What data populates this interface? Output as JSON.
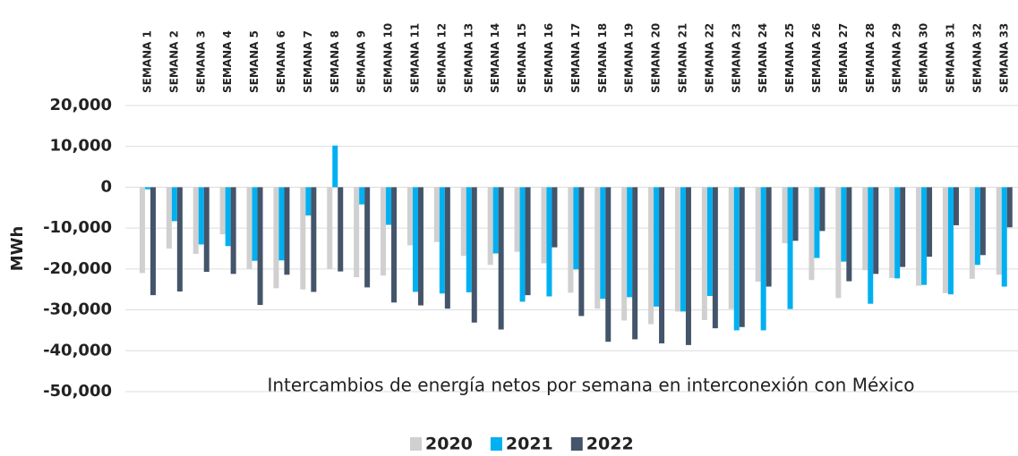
{
  "chart_data": {
    "type": "bar",
    "title": "Intercambios de energía netos por semana en interconexión con México",
    "y_label": "MWh",
    "categories": [
      "SEMANA 1",
      "SEMANA 2",
      "SEMANA 3",
      "SEMANA 4",
      "SEMANA 5",
      "SEMANA 6",
      "SEMANA 7",
      "SEMANA 8",
      "SEMANA 9",
      "SEMANA 10",
      "SEMANA 11",
      "SEMANA 12",
      "SEMANA 13",
      "SEMANA 14",
      "SEMANA 15",
      "SEMANA 16",
      "SEMANA 17",
      "SEMANA 18",
      "SEMANA 19",
      "SEMANA 20",
      "SEMANA 21",
      "SEMANA 22",
      "SEMANA 23",
      "SEMANA 24",
      "SEMANA 25",
      "SEMANA 26",
      "SEMANA 27",
      "SEMANA 28",
      "SEMANA 29",
      "SEMANA 30",
      "SEMANA 31",
      "SEMANA 32",
      "SEMANA 33"
    ],
    "series": [
      {
        "name": "2020",
        "color": "#d0d0d0",
        "values": [
          -21000,
          -15000,
          -16300,
          -11500,
          -20000,
          -24700,
          -25000,
          -20000,
          -22000,
          -21600,
          -14200,
          -13400,
          -16800,
          -19000,
          -15800,
          -18600,
          -25800,
          -29700,
          -32600,
          -33500,
          -30400,
          -32500,
          -29800,
          -23100,
          -13700,
          -22700,
          -27100,
          -20300,
          -22200,
          -24100,
          -25900,
          -22400,
          -21400
        ]
      },
      {
        "name": "2021",
        "color": "#00b0f0",
        "values": [
          -500,
          -8300,
          -14000,
          -14400,
          -18000,
          -17900,
          -6900,
          10200,
          -4200,
          -9200,
          -25600,
          -26000,
          -25700,
          -16200,
          -28000,
          -26700,
          -20100,
          -27300,
          -26900,
          -29200,
          -30400,
          -26600,
          -35000,
          -35000,
          -29800,
          -17300,
          -18200,
          -28500,
          -22300,
          -23900,
          -26200,
          -19000,
          -24300
        ]
      },
      {
        "name": "2022",
        "color": "#44546a",
        "values": [
          -26400,
          -25500,
          -20700,
          -21200,
          -28800,
          -21400,
          -25600,
          -20600,
          -24500,
          -28200,
          -28900,
          -29700,
          -33100,
          -34800,
          -26400,
          -14700,
          -31500,
          -37800,
          -37200,
          -38200,
          -38600,
          -34500,
          -34200,
          -24300,
          -13100,
          -10700,
          -23000,
          -21200,
          -19500,
          -17000,
          -9300,
          -16600,
          -9800
        ]
      }
    ],
    "ylim": [
      -50000,
      20000
    ],
    "yticks": [
      {
        "value": -50000,
        "label": "-50,000"
      },
      {
        "value": -40000,
        "label": "-40,000"
      },
      {
        "value": -30000,
        "label": "-30,000"
      },
      {
        "value": -20000,
        "label": "-20,000"
      },
      {
        "value": -10000,
        "label": "-10,000"
      },
      0,
      {
        "value": 10000,
        "label": "10,000"
      },
      {
        "value": 20000,
        "label": "20,000"
      }
    ],
    "grid": true
  }
}
